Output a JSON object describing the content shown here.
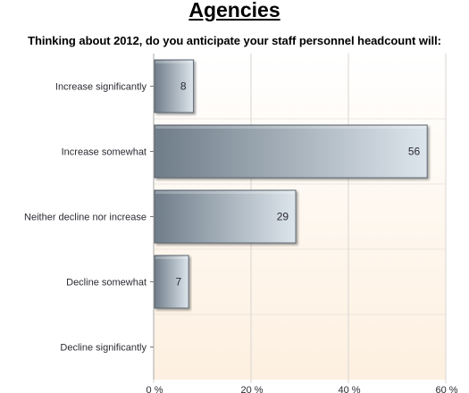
{
  "chart_data": {
    "type": "bar",
    "orientation": "horizontal",
    "title": "Agencies",
    "subtitle": "Thinking about 2012, do you anticipate your staff personnel headcount will:",
    "categories": [
      "Increase significantly",
      "Increase somewhat",
      "Neither decline nor increase",
      "Decline somewhat",
      "Decline significantly"
    ],
    "values": [
      8,
      56,
      29,
      7,
      0
    ],
    "value_labels": [
      "8",
      "56",
      "29",
      "7",
      ""
    ],
    "xlim": [
      0,
      60
    ],
    "x_ticks": [
      0,
      20,
      40,
      60
    ],
    "x_tick_labels": [
      "0 %",
      "20 %",
      "40 %",
      "60 %"
    ],
    "grid": true,
    "colors": {
      "bar_dark": "#6f7d89",
      "bar_light": "#dde5ec",
      "bar_border": "#5b6670",
      "background_top": "#ffffff",
      "background_bottom": "#fdf0e0",
      "grid": "#d9d5d0"
    }
  }
}
